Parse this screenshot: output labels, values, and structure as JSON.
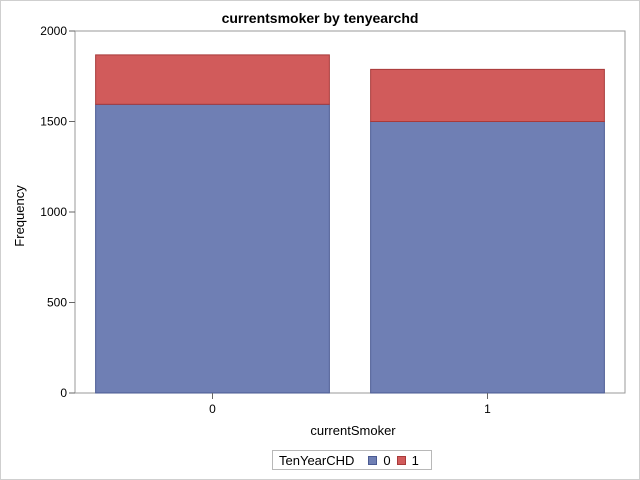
{
  "chart_data": {
    "type": "bar",
    "stacked": true,
    "title": "currentsmoker by tenyearchd",
    "xlabel": "currentSmoker",
    "ylabel": "Frequency",
    "categories": [
      "0",
      "1"
    ],
    "ylim": [
      0,
      2000
    ],
    "yticks": [
      "0",
      "500",
      "1000",
      "1500",
      "2000"
    ],
    "series": [
      {
        "name": "0",
        "values": [
          1595,
          1500
        ],
        "color": "#6f7fb4",
        "stroke": "#4a5a92"
      },
      {
        "name": "1",
        "values": [
          273,
          288
        ],
        "color": "#d15b5b",
        "stroke": "#a83a3a"
      }
    ],
    "legend": {
      "title": "TenYearCHD",
      "placement": "bottom-center"
    },
    "grid": false
  }
}
